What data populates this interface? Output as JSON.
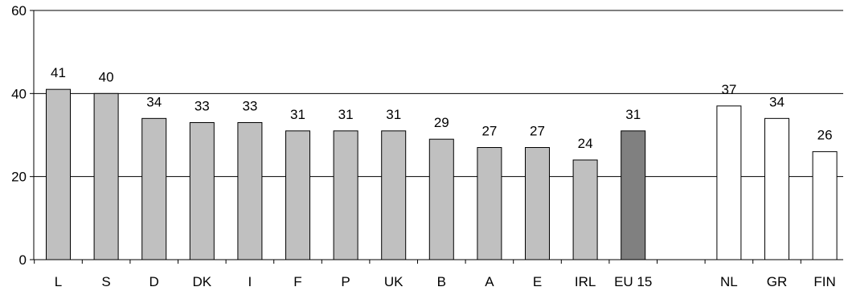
{
  "chart_data": {
    "type": "bar",
    "categories": [
      "L",
      "S",
      "D",
      "DK",
      "I",
      "F",
      "P",
      "UK",
      "B",
      "A",
      "E",
      "IRL",
      "EU 15",
      "",
      "NL",
      "GR",
      "FIN"
    ],
    "values": [
      41,
      40,
      34,
      33,
      33,
      31,
      31,
      31,
      29,
      27,
      27,
      24,
      31,
      null,
      37,
      34,
      26
    ],
    "bar_styles": [
      "light",
      "light",
      "light",
      "light",
      "light",
      "light",
      "light",
      "light",
      "light",
      "light",
      "light",
      "light",
      "dark",
      "none",
      "white",
      "white",
      "white"
    ],
    "ylim": [
      0,
      60
    ],
    "yticks": [
      0,
      20,
      40,
      60
    ],
    "title": "",
    "xlabel": "",
    "ylabel": "",
    "grid": "horizontal",
    "colors": {
      "light": "#c0c0c0",
      "dark": "#808080",
      "white": "#ffffff",
      "outline": "#000000"
    }
  }
}
